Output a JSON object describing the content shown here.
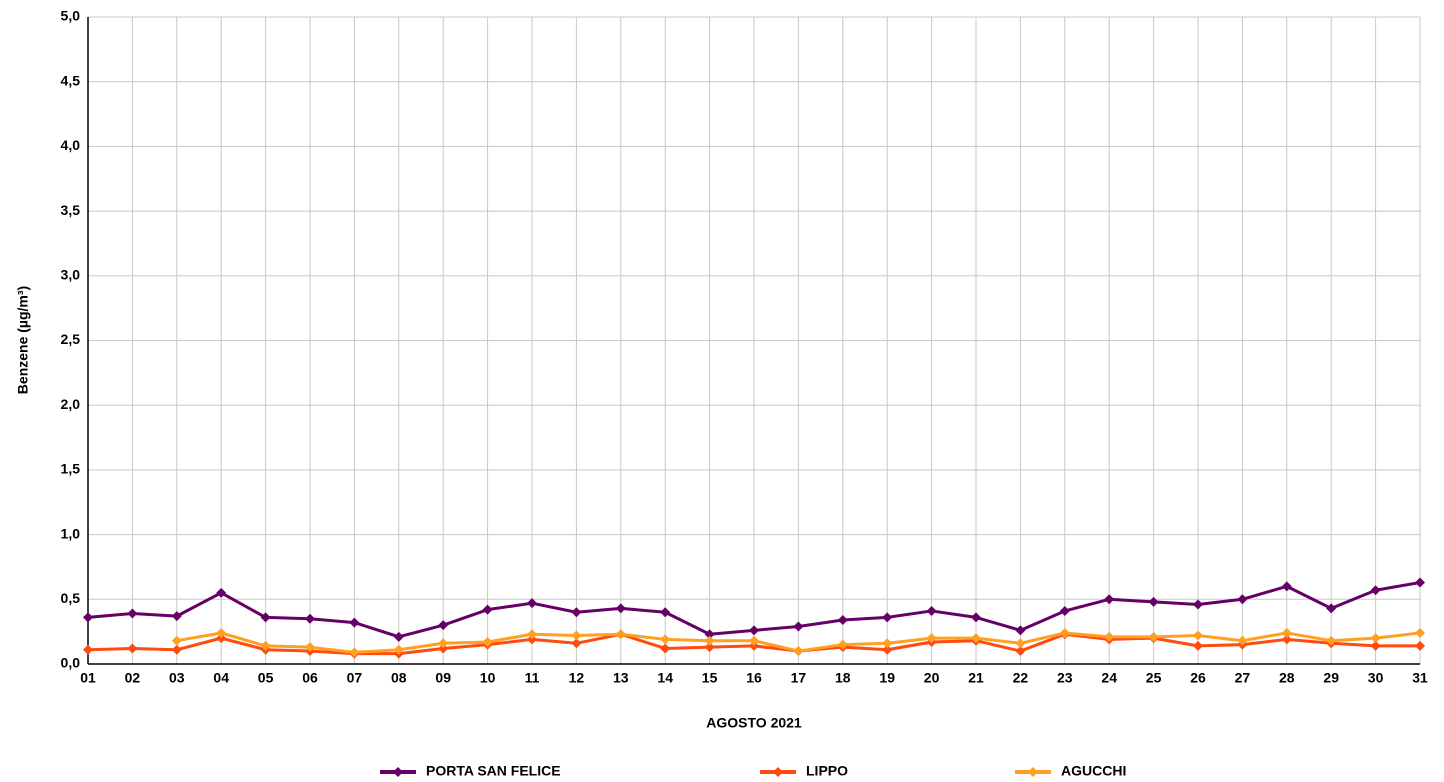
{
  "chart_data": {
    "type": "line",
    "x_label": "AGOSTO 2021",
    "y_label": "Benzene (µg/m³)",
    "categories": [
      "01",
      "02",
      "03",
      "04",
      "05",
      "06",
      "07",
      "08",
      "09",
      "10",
      "11",
      "12",
      "13",
      "14",
      "15",
      "16",
      "17",
      "18",
      "19",
      "20",
      "21",
      "22",
      "23",
      "24",
      "25",
      "26",
      "27",
      "28",
      "29",
      "30",
      "31"
    ],
    "series": [
      {
        "name": "PORTA SAN FELICE",
        "color": "#660066",
        "values": [
          0.36,
          0.39,
          0.37,
          0.55,
          0.36,
          0.35,
          0.32,
          0.21,
          0.3,
          0.42,
          0.47,
          0.4,
          0.43,
          0.4,
          0.23,
          0.26,
          0.29,
          0.34,
          0.36,
          0.41,
          0.36,
          0.26,
          0.41,
          0.5,
          0.48,
          0.46,
          0.5,
          0.6,
          0.43,
          0.57,
          0.63
        ]
      },
      {
        "name": "LIPPO",
        "color": "#ff4a10",
        "values": [
          0.11,
          0.12,
          0.11,
          0.2,
          0.11,
          0.1,
          0.08,
          0.08,
          0.12,
          0.15,
          0.19,
          0.16,
          0.23,
          0.12,
          0.13,
          0.14,
          0.1,
          0.13,
          0.11,
          0.17,
          0.18,
          0.1,
          0.23,
          0.19,
          0.2,
          0.14,
          0.15,
          0.19,
          0.16,
          0.14,
          0.14
        ]
      },
      {
        "name": "AGUCCHI",
        "color": "#ffa020",
        "values": [
          null,
          null,
          0.18,
          0.24,
          0.14,
          0.13,
          0.09,
          0.11,
          0.16,
          0.17,
          0.23,
          0.22,
          0.23,
          0.19,
          0.18,
          0.18,
          0.1,
          0.15,
          0.16,
          0.2,
          0.2,
          0.16,
          0.24,
          0.21,
          0.21,
          0.22,
          0.18,
          0.24,
          0.18,
          0.2,
          0.24
        ]
      }
    ],
    "ylim": [
      0,
      5
    ],
    "yticks": [
      {
        "value": 0,
        "label": "0,0"
      },
      {
        "value": 0.5,
        "label": "0,5"
      },
      {
        "value": 1,
        "label": "1,0"
      },
      {
        "value": 1.5,
        "label": "1,5"
      },
      {
        "value": 2,
        "label": "2,0"
      },
      {
        "value": 2.5,
        "label": "2,5"
      },
      {
        "value": 3,
        "label": "3,0"
      },
      {
        "value": 3.5,
        "label": "3,5"
      },
      {
        "value": 4,
        "label": "4,0"
      },
      {
        "value": 4.5,
        "label": "4,5"
      },
      {
        "value": 5,
        "label": "5,0"
      }
    ],
    "grid": true,
    "legend": "bottom"
  }
}
